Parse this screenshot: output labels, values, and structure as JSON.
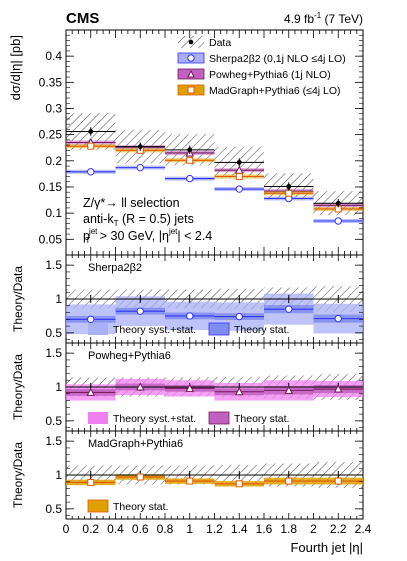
{
  "header": {
    "experiment": "CMS",
    "lumi": "4.9 fb",
    "lumi_sup": "-1",
    "energy": "(7 TeV)"
  },
  "selection_text": {
    "line1": "Z/γ*→ ll selection",
    "line2": "anti-k",
    "line2_sub": "T",
    "line2_rest": " (R = 0.5) jets",
    "line3_p": "p",
    "line3_sup": "jet",
    "line3_sub": "T",
    "line3_rest": " > 30 GeV, |η",
    "line3_sup2": "jet",
    "line3_end": "| < 2.4"
  },
  "colors": {
    "sherpa": "#3333ff",
    "sherpa_fill": "#aab0f5",
    "sherpa_stat": "#7f8cf0",
    "powheg": "#7a1a5a",
    "powheg_fill": "#f080f0",
    "powheg_stat": "#c060c0",
    "madgraph": "#e05a00",
    "madgraph_stat": "#e0a000",
    "data": "#000000",
    "hatch": "#555555"
  },
  "chart_data": [
    {
      "panel": "main",
      "type": "line",
      "ylabel": "dσ/d|η| [pb]",
      "xlim": [
        0,
        2.4
      ],
      "ylim": [
        0.02,
        0.45
      ],
      "yticks": [
        "0.05",
        "0.1",
        "0.15",
        "0.2",
        "0.25",
        "0.3",
        "0.35",
        "0.4"
      ],
      "bin_edges": [
        0,
        0.4,
        0.8,
        1.2,
        1.6,
        2.0,
        2.4
      ],
      "legend": [
        {
          "label": "Data",
          "key": "data"
        },
        {
          "label": "Sherpa2β2 (0,1j NLO ≤4j LO)",
          "key": "sherpa"
        },
        {
          "label": "Powheg+Pythia6 (1j NLO)",
          "key": "powheg"
        },
        {
          "label": "MadGraph+Pythia6 (≤4j LO)",
          "key": "madgraph"
        }
      ],
      "series": [
        {
          "name": "Data",
          "x": [
            0.2,
            0.6,
            1.0,
            1.4,
            1.8,
            2.2
          ],
          "values": [
            0.256,
            0.227,
            0.221,
            0.197,
            0.151,
            0.119
          ],
          "syst": [
            0.035,
            0.032,
            0.03,
            0.03,
            0.025,
            0.023
          ]
        },
        {
          "name": "Sherpa2β2 (0,1j NLO ≤4j LO)",
          "x": [
            0.2,
            0.6,
            1.0,
            1.4,
            1.8,
            2.2
          ],
          "values": [
            0.179,
            0.187,
            0.166,
            0.146,
            0.128,
            0.085
          ]
        },
        {
          "name": "Powheg+Pythia6 (1j NLO)",
          "x": [
            0.2,
            0.6,
            1.0,
            1.4,
            1.8,
            2.2
          ],
          "values": [
            0.235,
            0.226,
            0.215,
            0.182,
            0.142,
            0.115
          ]
        },
        {
          "name": "MadGraph+Pythia6 (≤4j LO)",
          "x": [
            0.2,
            0.6,
            1.0,
            1.4,
            1.8,
            2.2
          ],
          "values": [
            0.228,
            0.22,
            0.201,
            0.17,
            0.138,
            0.108
          ]
        }
      ]
    },
    {
      "panel": "ratio",
      "type": "line",
      "title": "Sherpa2β2",
      "ylabel": "Theory/Data",
      "ylim": [
        0.35,
        1.65
      ],
      "yticks": [
        "0.5",
        "1",
        "1.5"
      ],
      "values": [
        0.7,
        0.82,
        0.75,
        0.74,
        0.85,
        0.71
      ],
      "data_err": [
        0.14,
        0.14,
        0.14,
        0.15,
        0.17,
        0.19
      ],
      "syst_band": [
        0.22,
        0.22,
        0.21,
        0.21,
        0.23,
        0.22
      ],
      "stat_band": [
        0.05,
        0.05,
        0.05,
        0.05,
        0.06,
        0.06
      ],
      "legend": [
        "Theory syst.+stat.",
        "Theory stat."
      ]
    },
    {
      "panel": "ratio",
      "type": "line",
      "title": "Powheg+Pythia6",
      "ylabel": "Theory/Data",
      "ylim": [
        0.35,
        1.65
      ],
      "yticks": [
        "0.5",
        "1",
        "1.5"
      ],
      "values": [
        0.92,
        1.0,
        0.98,
        0.93,
        0.95,
        0.97
      ],
      "data_err": [
        0.14,
        0.14,
        0.14,
        0.15,
        0.17,
        0.19
      ],
      "syst_band": [
        0.12,
        0.12,
        0.12,
        0.13,
        0.15,
        0.12
      ],
      "stat_band": [
        0.05,
        0.05,
        0.05,
        0.05,
        0.06,
        0.06
      ],
      "legend": [
        "Theory syst.+stat.",
        "Theory stat."
      ]
    },
    {
      "panel": "ratio",
      "type": "line",
      "title": "MadGraph+Pythia6",
      "ylabel": "Theory/Data",
      "xlabel": "Fourth jet |η|",
      "ylim": [
        0.35,
        1.65
      ],
      "yticks": [
        "0.5",
        "1",
        "1.5"
      ],
      "xticks": [
        "0",
        "0.2",
        "0.4",
        "0.6",
        "0.8",
        "1",
        "1.2",
        "1.4",
        "1.6",
        "1.8",
        "2",
        "2.2",
        "2.4"
      ],
      "values": [
        0.89,
        0.97,
        0.91,
        0.87,
        0.91,
        0.91
      ],
      "data_err": [
        0.14,
        0.14,
        0.14,
        0.15,
        0.17,
        0.19
      ],
      "stat_band": [
        0.04,
        0.04,
        0.04,
        0.04,
        0.05,
        0.05
      ],
      "legend": [
        "Theory stat."
      ]
    }
  ]
}
